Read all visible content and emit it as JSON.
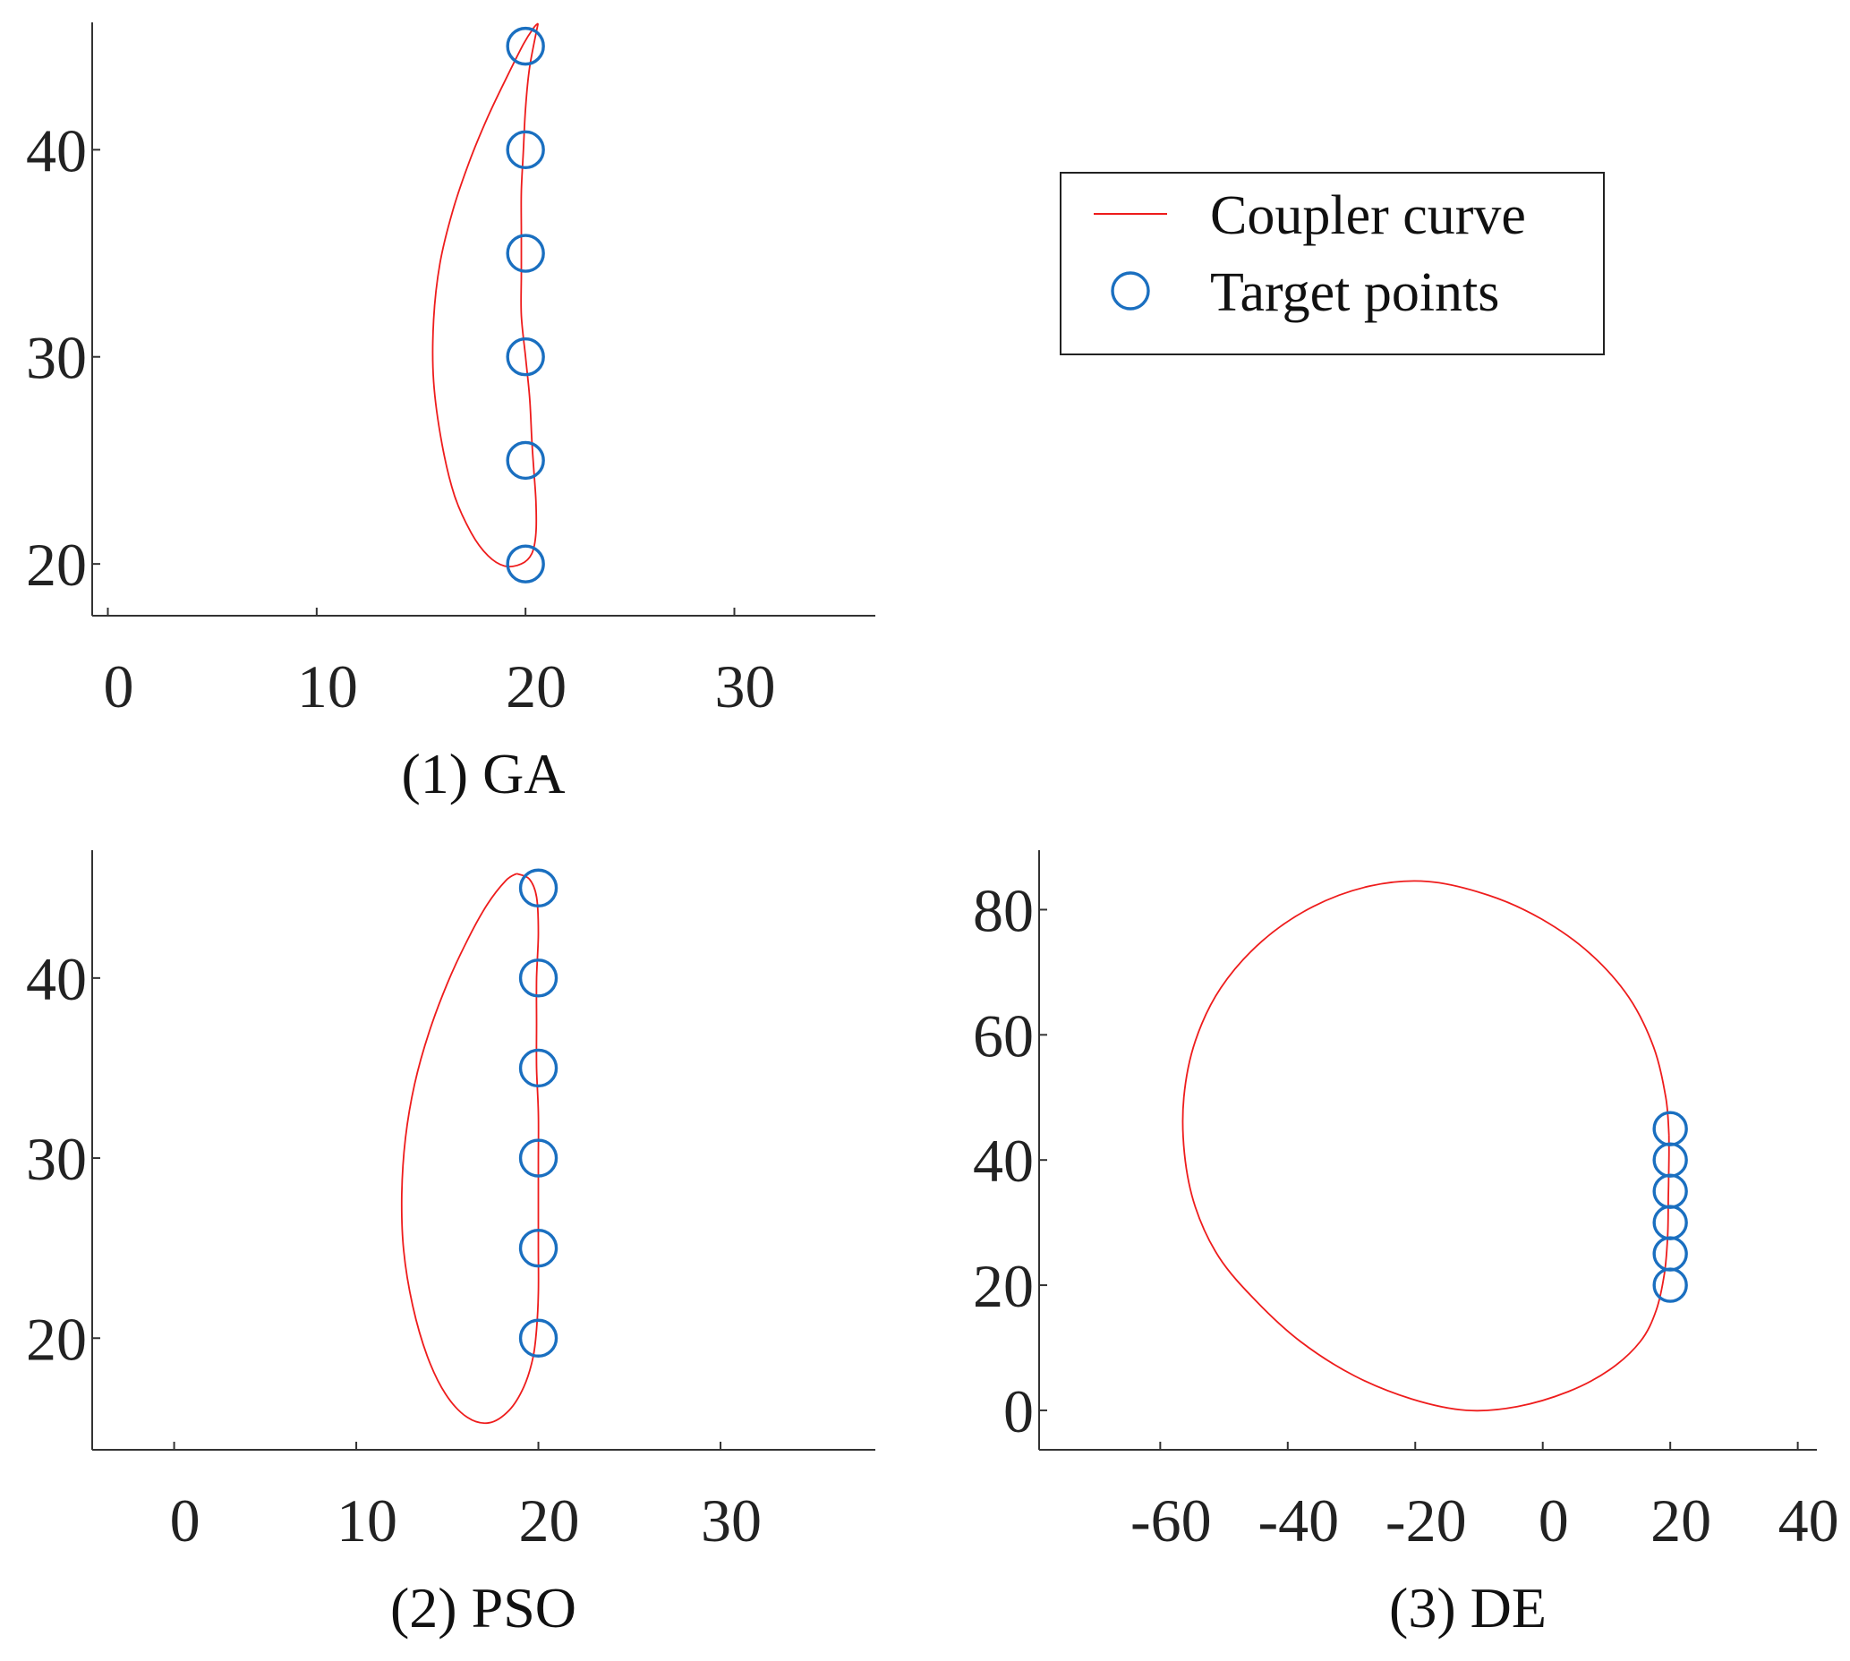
{
  "colors": {
    "curve": "#ee1c1c",
    "target": "#1a6fc0",
    "axis": "#333333"
  },
  "legend": {
    "placement": "upper-right",
    "items": [
      {
        "label": "Coupler curve",
        "marker": "line",
        "color": "#ee1c1c"
      },
      {
        "label": "Target points",
        "marker": "circle-open",
        "color": "#1a6fc0"
      }
    ]
  },
  "chart_data": [
    {
      "id": "ga",
      "type": "line",
      "caption": "(1) GA",
      "xlabel": "",
      "ylabel": "",
      "xlim": [
        -0.75,
        36.75
      ],
      "ylim": [
        17.5,
        46.15
      ],
      "xticks": [
        0,
        10,
        20,
        30
      ],
      "yticks": [
        20,
        30,
        40
      ],
      "grid": false,
      "series": [
        {
          "name": "Coupler curve",
          "kind": "line",
          "points": [
            [
              20.6,
              46.1
            ],
            [
              20.2,
              44.0
            ],
            [
              20.0,
              42.0
            ],
            [
              19.9,
              40.0
            ],
            [
              19.8,
              38.0
            ],
            [
              19.8,
              36.0
            ],
            [
              19.8,
              34.0
            ],
            [
              19.8,
              32.0
            ],
            [
              20.0,
              30.0
            ],
            [
              20.2,
              28.0
            ],
            [
              20.3,
              26.0
            ],
            [
              20.4,
              24.5
            ],
            [
              20.5,
              23.0
            ],
            [
              20.5,
              21.5
            ],
            [
              20.3,
              20.5
            ],
            [
              19.8,
              20.0
            ],
            [
              19.0,
              19.9
            ],
            [
              18.2,
              20.4
            ],
            [
              17.4,
              21.5
            ],
            [
              16.6,
              23.3
            ],
            [
              16.0,
              25.8
            ],
            [
              15.6,
              28.8
            ],
            [
              15.6,
              31.8
            ],
            [
              15.9,
              34.5
            ],
            [
              16.5,
              37.0
            ],
            [
              17.3,
              39.4
            ],
            [
              18.2,
              41.6
            ],
            [
              19.1,
              43.5
            ],
            [
              19.9,
              45.1
            ],
            [
              20.4,
              45.9
            ],
            [
              20.6,
              46.1
            ]
          ]
        },
        {
          "name": "Target points",
          "kind": "scatter",
          "points": [
            [
              20,
              45
            ],
            [
              20,
              40
            ],
            [
              20,
              35
            ],
            [
              20,
              30
            ],
            [
              20,
              25
            ],
            [
              20,
              20
            ]
          ]
        }
      ]
    },
    {
      "id": "pso",
      "type": "line",
      "caption": "(2) PSO",
      "xlabel": "",
      "ylabel": "",
      "xlim": [
        -4.5,
        38.5
      ],
      "ylim": [
        13.8,
        47.1
      ],
      "xticks": [
        0,
        10,
        20,
        30
      ],
      "yticks": [
        20,
        30,
        40
      ],
      "grid": false,
      "series": [
        {
          "name": "Coupler curve",
          "kind": "line",
          "points": [
            [
              18.8,
              45.8
            ],
            [
              19.5,
              45.5
            ],
            [
              19.9,
              44.5
            ],
            [
              20.0,
              42.5
            ],
            [
              19.9,
              40.0
            ],
            [
              19.9,
              37.5
            ],
            [
              19.9,
              35.0
            ],
            [
              20.0,
              32.5
            ],
            [
              20.0,
              30.0
            ],
            [
              20.0,
              27.5
            ],
            [
              20.0,
              25.0
            ],
            [
              20.0,
              22.5
            ],
            [
              19.9,
              20.5
            ],
            [
              19.7,
              18.9
            ],
            [
              19.2,
              17.3
            ],
            [
              18.4,
              16.0
            ],
            [
              17.3,
              15.3
            ],
            [
              16.1,
              15.6
            ],
            [
              14.9,
              16.9
            ],
            [
              13.9,
              19.0
            ],
            [
              13.1,
              21.8
            ],
            [
              12.6,
              24.9
            ],
            [
              12.5,
              28.0
            ],
            [
              12.7,
              31.1
            ],
            [
              13.2,
              34.1
            ],
            [
              14.0,
              37.0
            ],
            [
              15.0,
              39.7
            ],
            [
              16.1,
              42.1
            ],
            [
              17.2,
              44.1
            ],
            [
              18.2,
              45.4
            ],
            [
              18.8,
              45.8
            ]
          ]
        },
        {
          "name": "Target points",
          "kind": "scatter",
          "points": [
            [
              20,
              45
            ],
            [
              20,
              40
            ],
            [
              20,
              35
            ],
            [
              20,
              30
            ],
            [
              20,
              25
            ],
            [
              20,
              20
            ]
          ]
        }
      ]
    },
    {
      "id": "de",
      "type": "line",
      "caption": "(3) DE",
      "xlabel": "",
      "ylabel": "",
      "xlim": [
        -79.0,
        43.0
      ],
      "ylim": [
        -6.3,
        89.5
      ],
      "xticks": [
        -60,
        -40,
        -20,
        0,
        20,
        40
      ],
      "yticks": [
        0,
        20,
        40,
        60,
        80
      ],
      "grid": false,
      "series": [
        {
          "name": "Coupler curve",
          "kind": "line",
          "points": [
            [
              19.8,
              44.0
            ],
            [
              19.3,
              50.0
            ],
            [
              17.4,
              58.0
            ],
            [
              13.5,
              66.0
            ],
            [
              7.4,
              73.0
            ],
            [
              -0.2,
              78.5
            ],
            [
              -8.5,
              82.3
            ],
            [
              -18.0,
              84.5
            ],
            [
              -27.0,
              83.8
            ],
            [
              -36.0,
              80.5
            ],
            [
              -44.0,
              75.0
            ],
            [
              -50.5,
              67.5
            ],
            [
              -54.5,
              59.0
            ],
            [
              -56.3,
              50.0
            ],
            [
              -56.2,
              41.0
            ],
            [
              -54.5,
              32.5
            ],
            [
              -50.8,
              24.5
            ],
            [
              -45.0,
              17.5
            ],
            [
              -38.0,
              11.0
            ],
            [
              -29.5,
              5.5
            ],
            [
              -20.5,
              1.8
            ],
            [
              -12.0,
              0.0
            ],
            [
              -4.0,
              0.6
            ],
            [
              4.0,
              3.0
            ],
            [
              10.5,
              6.5
            ],
            [
              15.3,
              11.0
            ],
            [
              17.8,
              16.0
            ],
            [
              19.1,
              22.0
            ],
            [
              19.6,
              28.0
            ],
            [
              19.7,
              34.0
            ],
            [
              19.8,
              40.0
            ],
            [
              19.8,
              44.0
            ]
          ]
        },
        {
          "name": "Target points",
          "kind": "scatter",
          "points": [
            [
              20,
              45
            ],
            [
              20,
              40
            ],
            [
              20,
              35
            ],
            [
              20,
              30
            ],
            [
              20,
              25
            ],
            [
              20,
              20
            ]
          ]
        }
      ]
    }
  ]
}
